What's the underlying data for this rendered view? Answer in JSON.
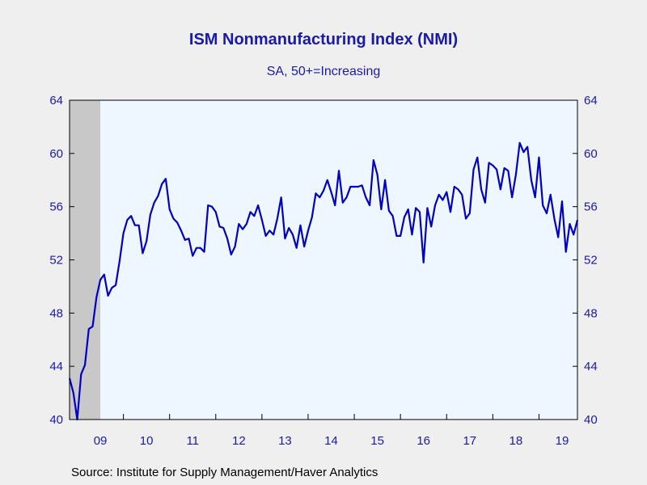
{
  "chart_data": {
    "type": "line",
    "title": "ISM Nonmanufacturing Index (NMI)",
    "subtitle": "SA, 50+=Increasing",
    "source": "Source:  Institute for Supply Management/Haver Analytics",
    "ylim": [
      40,
      64
    ],
    "yticks": [
      40,
      44,
      48,
      52,
      56,
      60,
      64
    ],
    "x_start": "2008-11",
    "x_range": [
      "2008-11",
      "2019-11"
    ],
    "xtick_labels": [
      "09",
      "10",
      "11",
      "12",
      "13",
      "14",
      "15",
      "16",
      "17",
      "18",
      "19"
    ],
    "recession": {
      "start": "2008-11",
      "end": "2009-06"
    },
    "colors": {
      "line": "#0000c0",
      "plot_bg": "#eef6ff",
      "recession": "#c8c8c8",
      "text": "#1a1aaa"
    },
    "series": [
      {
        "values": [
          43.1,
          42.0,
          40.0,
          43.4,
          44.1,
          46.8,
          47.0,
          49.2,
          50.5,
          50.9,
          49.3,
          49.9,
          50.1,
          51.9,
          54.0,
          55.0,
          55.3,
          54.6,
          54.6,
          52.5,
          53.4,
          55.4,
          56.3,
          56.8,
          57.7,
          58.1,
          55.8,
          55.1,
          54.8,
          54.2,
          53.5,
          53.6,
          52.3,
          52.9,
          52.9,
          52.6,
          56.1,
          56.0,
          55.6,
          54.5,
          54.4,
          53.6,
          52.4,
          53.0,
          54.7,
          54.3,
          54.7,
          55.6,
          55.3,
          56.1,
          55.0,
          53.8,
          54.2,
          53.9,
          55.1,
          56.7,
          53.6,
          54.4,
          53.9,
          52.9,
          54.6,
          53.0,
          54.2,
          55.2,
          57.0,
          56.7,
          57.2,
          58.0,
          57.1,
          56.1,
          58.7,
          56.3,
          56.7,
          57.5,
          57.5,
          57.5,
          57.6,
          56.7,
          56.1,
          59.5,
          58.4,
          55.8,
          58.0,
          55.7,
          55.3,
          53.8,
          53.8,
          55.2,
          55.8,
          53.9,
          55.9,
          55.6,
          51.8,
          55.9,
          54.5,
          56.1,
          56.9,
          56.5,
          57.1,
          55.6,
          57.5,
          57.3,
          56.9,
          55.1,
          55.5,
          58.8,
          59.7,
          57.3,
          56.3,
          59.3,
          59.1,
          58.8,
          57.3,
          58.9,
          58.7,
          56.7,
          58.4,
          60.8,
          60.1,
          60.5,
          58.0,
          56.7,
          59.7,
          56.1,
          55.5,
          56.9,
          55.1,
          53.7,
          56.4,
          52.6,
          54.7,
          53.9,
          55.0
        ]
      }
    ]
  }
}
